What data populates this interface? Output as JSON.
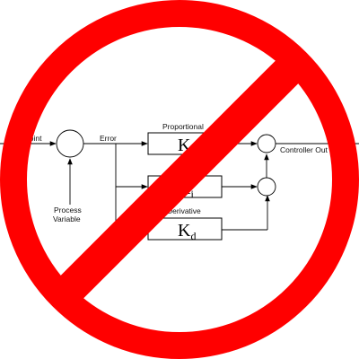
{
  "diagram": {
    "labels": {
      "setpoint": "point",
      "error": "Error",
      "process_variable_line1": "Process",
      "process_variable_line2": "Variable",
      "proportional": "Proportional",
      "derivative": "Derivative",
      "controller_output": "Controller Out"
    },
    "gains": {
      "proportional": {
        "main": "K",
        "sub": "p"
      },
      "integral": {
        "main": "K",
        "sub": "i"
      },
      "derivative": {
        "main": "K",
        "sub": "d"
      }
    }
  },
  "prohibition_sign": {
    "color": "#ff0000"
  }
}
